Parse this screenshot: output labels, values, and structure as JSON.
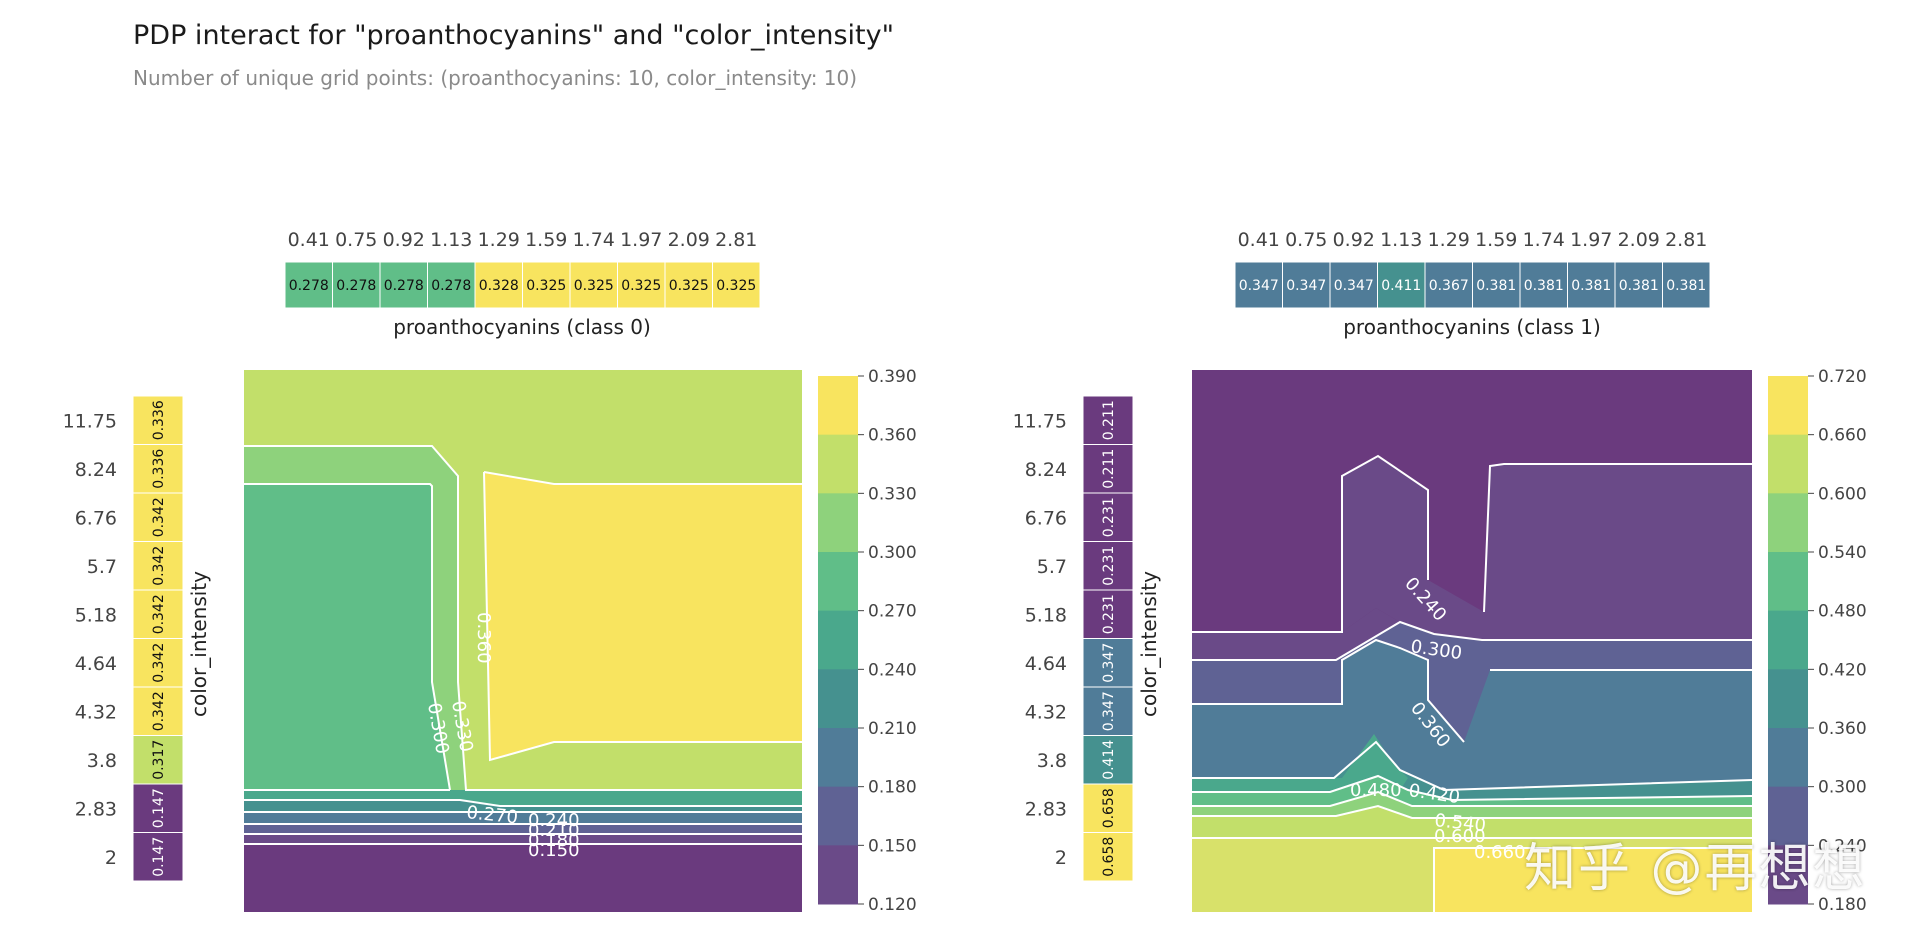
{
  "title": "PDP interact for \"proanthocyanins\" and \"color_intensity\"",
  "subtitle": "Number of unique grid points: (proanthocyanins: 10, color_intensity: 10)",
  "watermark": "知乎 @再想想",
  "chart_data": [
    {
      "type": "heatmap",
      "panel": "class 0",
      "x_feature": "proanthocyanins (class 0)",
      "y_feature": "color_intensity",
      "x_grid": [
        "0.41",
        "0.75",
        "0.92",
        "1.13",
        "1.29",
        "1.59",
        "1.74",
        "1.97",
        "2.09",
        "2.81"
      ],
      "x_marginal": [
        "0.278",
        "0.278",
        "0.278",
        "0.278",
        "0.328",
        "0.325",
        "0.325",
        "0.325",
        "0.325",
        "0.325"
      ],
      "y_grid": [
        "11.75",
        "8.24",
        "6.76",
        "5.7",
        "5.18",
        "4.64",
        "4.32",
        "3.8",
        "2.83",
        "2"
      ],
      "y_marginal": [
        "0.336",
        "0.336",
        "0.342",
        "0.342",
        "0.342",
        "0.342",
        "0.342",
        "0.317",
        "0.147",
        "0.147"
      ],
      "colorbar_ticks": [
        "0.390",
        "0.360",
        "0.330",
        "0.300",
        "0.270",
        "0.240",
        "0.210",
        "0.180",
        "0.150",
        "0.120"
      ],
      "contour_labels": [
        "0.360",
        "0.300",
        "0.330",
        "0.270",
        "0.240",
        "0.210",
        "0.180",
        "0.150"
      ]
    },
    {
      "type": "heatmap",
      "panel": "class 1",
      "x_feature": "proanthocyanins (class 1)",
      "y_feature": "color_intensity",
      "x_grid": [
        "0.41",
        "0.75",
        "0.92",
        "1.13",
        "1.29",
        "1.59",
        "1.74",
        "1.97",
        "2.09",
        "2.81"
      ],
      "x_marginal": [
        "0.347",
        "0.347",
        "0.347",
        "0.411",
        "0.367",
        "0.381",
        "0.381",
        "0.381",
        "0.381",
        "0.381"
      ],
      "y_grid": [
        "11.75",
        "8.24",
        "6.76",
        "5.7",
        "5.18",
        "4.64",
        "4.32",
        "3.8",
        "2.83",
        "2"
      ],
      "y_marginal": [
        "0.211",
        "0.211",
        "0.231",
        "0.231",
        "0.231",
        "0.347",
        "0.347",
        "0.414",
        "0.658",
        "0.658"
      ],
      "colorbar_ticks": [
        "0.720",
        "0.660",
        "0.600",
        "0.540",
        "0.480",
        "0.420",
        "0.360",
        "0.300",
        "0.240",
        "0.180"
      ],
      "contour_labels": [
        "0.240",
        "0.300",
        "0.360",
        "0.480",
        "0.420",
        "0.540",
        "0.600",
        "0.660"
      ]
    }
  ],
  "colors": {
    "viridis": [
      "#6a3a7e",
      "#6a4a88",
      "#5f6294",
      "#507c98",
      "#45918f",
      "#4aa88c",
      "#60be88",
      "#8ed27c",
      "#c2df6a",
      "#f8e45f"
    ]
  }
}
